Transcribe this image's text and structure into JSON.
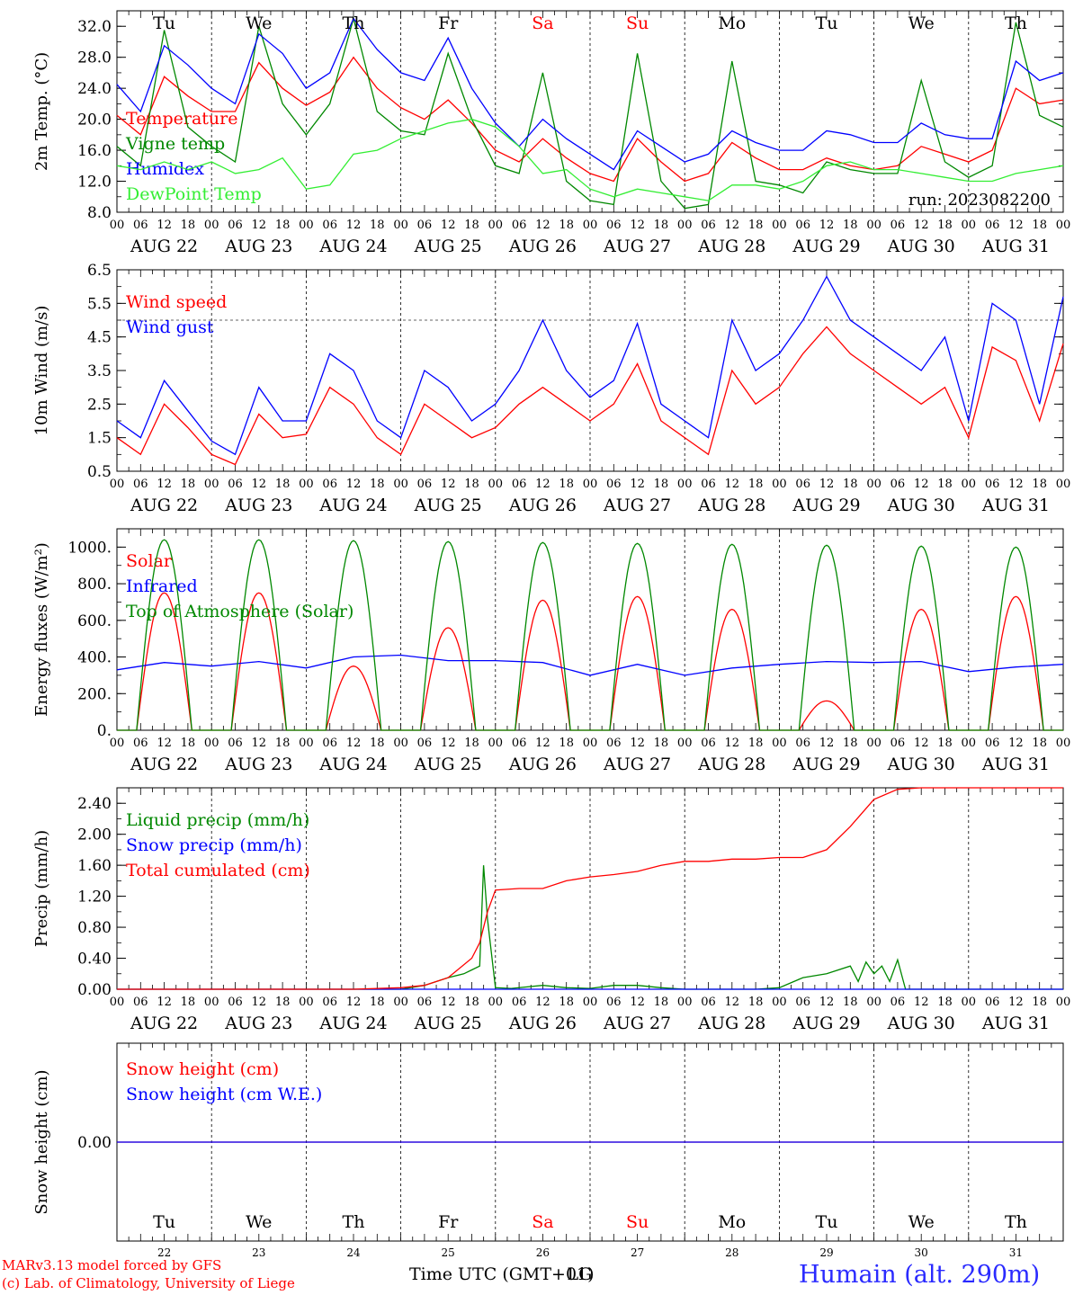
{
  "chart_data": [
    {
      "type": "line",
      "ylabel": "2m Temp. (°C)",
      "ylim": [
        8.0,
        34.0
      ],
      "yticks": [
        "8.0",
        "12.0",
        "16.0",
        "20.0",
        "24.0",
        "28.0",
        "32.0"
      ],
      "run_label": "run: 2023082200",
      "x_unit": "hours since AUG 22 00 UTC",
      "xlim": [
        0,
        240
      ],
      "legend_placement": "left",
      "series": [
        {
          "name": "Temperature",
          "color": "#ff0000",
          "x": [
            0,
            6,
            12,
            18,
            24,
            30,
            36,
            42,
            48,
            54,
            60,
            66,
            72,
            78,
            84,
            90,
            96,
            102,
            108,
            114,
            120,
            126,
            132,
            138,
            144,
            150,
            156,
            162,
            168,
            174,
            180,
            186,
            192,
            198,
            204,
            210,
            216,
            222,
            228,
            234,
            240
          ],
          "y": [
            20.5,
            18.0,
            25.5,
            23.0,
            21.0,
            21.0,
            27.3,
            24.0,
            21.8,
            23.5,
            28.0,
            24.0,
            21.5,
            20.0,
            22.5,
            19.5,
            16.0,
            14.5,
            17.5,
            15.0,
            13.0,
            12.0,
            17.5,
            14.5,
            12.0,
            13.0,
            17.0,
            15.0,
            13.5,
            13.5,
            15.0,
            14.0,
            13.5,
            14.0,
            16.5,
            15.5,
            14.5,
            16.0,
            24.0,
            22.0,
            22.5
          ]
        },
        {
          "name": "Vigne temp",
          "color": "#008800",
          "x": [
            0,
            6,
            12,
            18,
            24,
            30,
            36,
            42,
            48,
            54,
            60,
            66,
            72,
            78,
            84,
            90,
            96,
            102,
            108,
            114,
            120,
            126,
            132,
            138,
            144,
            150,
            156,
            162,
            168,
            174,
            180,
            186,
            192,
            198,
            204,
            210,
            216,
            222,
            228,
            234,
            240
          ],
          "y": [
            16.5,
            14.0,
            31.5,
            19.0,
            16.5,
            14.5,
            32.0,
            22.0,
            18.0,
            22.0,
            33.0,
            21.0,
            18.5,
            18.0,
            28.5,
            20.0,
            14.0,
            13.0,
            26.0,
            12.0,
            9.5,
            9.0,
            28.5,
            12.0,
            8.5,
            9.0,
            27.5,
            12.0,
            11.5,
            10.5,
            14.5,
            13.5,
            13.0,
            13.0,
            25.0,
            14.5,
            12.5,
            14.0,
            32.5,
            20.5,
            19.0
          ]
        },
        {
          "name": "Humidex",
          "color": "#0000ff",
          "x": [
            0,
            6,
            12,
            18,
            24,
            30,
            36,
            42,
            48,
            54,
            60,
            66,
            72,
            78,
            84,
            90,
            96,
            102,
            108,
            114,
            120,
            126,
            132,
            138,
            144,
            150,
            156,
            162,
            168,
            174,
            180,
            186,
            192,
            198,
            204,
            210,
            216,
            222,
            228,
            234,
            240
          ],
          "y": [
            24.5,
            21.0,
            29.5,
            27.0,
            24.0,
            22.0,
            31.0,
            28.5,
            24.0,
            26.0,
            33.0,
            29.0,
            26.0,
            25.0,
            30.5,
            24.0,
            19.5,
            16.5,
            20.0,
            17.5,
            15.5,
            13.5,
            18.5,
            16.5,
            14.5,
            15.5,
            18.5,
            17.0,
            16.0,
            16.0,
            18.5,
            18.0,
            17.0,
            17.0,
            19.5,
            18.0,
            17.5,
            17.5,
            27.5,
            25.0,
            26.0
          ]
        },
        {
          "name": "DewPoint Temp",
          "color": "#33ee33",
          "x": [
            0,
            6,
            12,
            18,
            24,
            30,
            36,
            42,
            48,
            54,
            60,
            66,
            72,
            78,
            84,
            90,
            96,
            102,
            108,
            114,
            120,
            126,
            132,
            138,
            144,
            150,
            156,
            162,
            168,
            174,
            180,
            186,
            192,
            198,
            204,
            210,
            216,
            222,
            228,
            234,
            240
          ],
          "y": [
            14.0,
            13.5,
            14.5,
            13.5,
            14.5,
            13.0,
            13.5,
            15.0,
            11.0,
            11.5,
            15.5,
            16.0,
            17.5,
            18.5,
            19.5,
            20.0,
            19.0,
            16.5,
            13.0,
            13.5,
            11.0,
            10.0,
            11.0,
            10.5,
            10.0,
            9.5,
            11.5,
            11.5,
            11.0,
            12.0,
            14.0,
            14.5,
            13.5,
            13.5,
            13.0,
            12.5,
            12.0,
            12.0,
            13.0,
            13.5,
            14.0
          ]
        }
      ]
    },
    {
      "type": "line",
      "ylabel": "10m Wind (m/s)",
      "ylim": [
        0.5,
        6.5
      ],
      "yticks": [
        "0.5",
        "1.5",
        "2.5",
        "3.5",
        "4.5",
        "5.5",
        "6.5"
      ],
      "reference_line": 5.0,
      "xlim": [
        0,
        240
      ],
      "legend_placement": "left",
      "series": [
        {
          "name": "Wind speed",
          "color": "#ff0000",
          "x": [
            0,
            6,
            12,
            18,
            24,
            30,
            36,
            42,
            48,
            54,
            60,
            66,
            72,
            78,
            84,
            90,
            96,
            102,
            108,
            114,
            120,
            126,
            132,
            138,
            144,
            150,
            156,
            162,
            168,
            174,
            180,
            186,
            192,
            198,
            204,
            210,
            216,
            222,
            228,
            234,
            240
          ],
          "y": [
            1.5,
            1.0,
            2.5,
            1.8,
            1.0,
            0.7,
            2.2,
            1.5,
            1.6,
            3.0,
            2.5,
            1.5,
            1.0,
            2.5,
            2.0,
            1.5,
            1.8,
            2.5,
            3.0,
            2.5,
            2.0,
            2.5,
            3.7,
            2.0,
            1.5,
            1.0,
            3.5,
            2.5,
            3.0,
            4.0,
            4.8,
            4.0,
            3.5,
            3.0,
            2.5,
            3.0,
            1.5,
            4.2,
            3.8,
            2.0,
            4.3
          ]
        },
        {
          "name": "Wind gust",
          "color": "#0000ff",
          "x": [
            0,
            6,
            12,
            18,
            24,
            30,
            36,
            42,
            48,
            54,
            60,
            66,
            72,
            78,
            84,
            90,
            96,
            102,
            108,
            114,
            120,
            126,
            132,
            138,
            144,
            150,
            156,
            162,
            168,
            174,
            180,
            186,
            192,
            198,
            204,
            210,
            216,
            222,
            228,
            234,
            240
          ],
          "y": [
            2.0,
            1.5,
            3.2,
            2.3,
            1.4,
            1.0,
            3.0,
            2.0,
            2.0,
            4.0,
            3.5,
            2.0,
            1.5,
            3.5,
            3.0,
            2.0,
            2.5,
            3.5,
            5.0,
            3.5,
            2.7,
            3.2,
            4.9,
            2.5,
            2.0,
            1.5,
            5.0,
            3.5,
            4.0,
            5.0,
            6.3,
            5.0,
            4.5,
            4.0,
            3.5,
            4.5,
            2.0,
            5.5,
            5.0,
            2.5,
            5.7
          ]
        }
      ]
    },
    {
      "type": "line",
      "ylabel": "Energy fluxes (W/m²)",
      "ylim": [
        0,
        1100
      ],
      "yticks": [
        "0.",
        "200.",
        "400.",
        "600.",
        "800.",
        "1000."
      ],
      "xlim": [
        0,
        240
      ],
      "legend_placement": "left",
      "series": [
        {
          "name": "Solar",
          "color": "#ff0000",
          "daily_peak": [
            750,
            750,
            350,
            560,
            710,
            730,
            660,
            160,
            660,
            730
          ]
        },
        {
          "name": "Infrared",
          "color": "#0000ff",
          "x": [
            0,
            12,
            24,
            36,
            48,
            60,
            72,
            84,
            96,
            108,
            120,
            132,
            144,
            156,
            168,
            180,
            192,
            204,
            216,
            228,
            240
          ],
          "y": [
            330,
            370,
            350,
            375,
            340,
            400,
            410,
            380,
            380,
            370,
            300,
            360,
            300,
            340,
            360,
            375,
            370,
            375,
            320,
            345,
            360
          ]
        },
        {
          "name": "Top of Atmosphere (Solar)",
          "color": "#008800",
          "daily_peak": [
            1040,
            1040,
            1035,
            1030,
            1025,
            1020,
            1015,
            1010,
            1005,
            1000
          ]
        }
      ]
    },
    {
      "type": "line",
      "ylabel": "Precip (mm/h)",
      "ylim": [
        0,
        2.6
      ],
      "yticks": [
        "0.00",
        "0.40",
        "0.80",
        "1.20",
        "1.60",
        "2.00",
        "2.40"
      ],
      "xlim": [
        0,
        240
      ],
      "legend_placement": "left",
      "series": [
        {
          "name": "Liquid precip (mm/h)",
          "color": "#008800",
          "x": [
            0,
            60,
            72,
            78,
            84,
            88,
            90,
            92,
            93,
            94,
            96,
            100,
            108,
            114,
            120,
            126,
            132,
            138,
            144,
            156,
            162,
            168,
            174,
            180,
            186,
            188,
            190,
            192,
            194,
            196,
            198,
            200,
            240
          ],
          "y": [
            0,
            0,
            0,
            0.05,
            0.15,
            0.2,
            0.25,
            0.3,
            1.6,
            0.9,
            0.02,
            0.01,
            0.05,
            0.02,
            0.01,
            0.05,
            0.05,
            0.02,
            0,
            0,
            0,
            0.02,
            0.15,
            0.2,
            0.3,
            0.1,
            0.35,
            0.2,
            0.3,
            0.1,
            0.38,
            0,
            0
          ]
        },
        {
          "name": "Snow precip (mm/h)",
          "color": "#0000ff",
          "x": [
            0,
            240
          ],
          "y": [
            0,
            0
          ]
        },
        {
          "name": "Total cumulated (cm)",
          "color": "#ff0000",
          "x": [
            0,
            60,
            72,
            78,
            84,
            90,
            92,
            94,
            96,
            102,
            108,
            114,
            120,
            126,
            132,
            138,
            144,
            150,
            156,
            162,
            168,
            174,
            180,
            186,
            192,
            198,
            204,
            210,
            216,
            222,
            228,
            234,
            240
          ],
          "y": [
            0,
            0,
            0.02,
            0.05,
            0.15,
            0.4,
            0.6,
            1.0,
            1.28,
            1.3,
            1.3,
            1.4,
            1.45,
            1.48,
            1.52,
            1.6,
            1.65,
            1.65,
            1.68,
            1.68,
            1.7,
            1.7,
            1.8,
            2.1,
            2.45,
            2.58,
            2.6,
            2.6,
            2.6,
            2.6,
            2.6,
            2.6,
            2.6
          ]
        }
      ]
    },
    {
      "type": "line",
      "ylabel": "Snow height (cm)",
      "ylim": [
        -1,
        1
      ],
      "yticks": [
        "0.00"
      ],
      "xlim": [
        0,
        240
      ],
      "legend_placement": "left",
      "series": [
        {
          "name": "Snow height (cm)",
          "color": "#ff0000",
          "x": [
            0,
            240
          ],
          "y": [
            0,
            0
          ]
        },
        {
          "name": "Snow height (cm W.E.)",
          "color": "#0000ff",
          "x": [
            0,
            240
          ],
          "y": [
            0,
            0
          ]
        }
      ]
    }
  ],
  "hour_ticks": [
    "00",
    "06",
    "12",
    "18"
  ],
  "end_tick": "00",
  "dates": [
    "AUG 22",
    "AUG 23",
    "AUG 24",
    "AUG 25",
    "AUG 26",
    "AUG 27",
    "AUG 28",
    "AUG 29",
    "AUG 30",
    "AUG 31"
  ],
  "weekdays": [
    "Tu",
    "We",
    "Th",
    "Fr",
    "Sa",
    "Su",
    "Mo",
    "Tu",
    "We",
    "Th"
  ],
  "weekend_flags": [
    false,
    false,
    false,
    false,
    true,
    true,
    false,
    false,
    false,
    false
  ],
  "day_numbers": [
    "22",
    "23",
    "24",
    "25",
    "26",
    "27",
    "28",
    "29",
    "30",
    "31"
  ],
  "xlabel": "Time UTC (GMT+01)",
  "xlabel_overlap": "LG",
  "credit_line1": "MARv3.13 model forced by GFS",
  "credit_line2": "(c) Lab. of Climatology, University of Liege",
  "station": "Humain (alt. 290m)",
  "colors": {
    "weekday": "#000000",
    "weekend": "#ff0000"
  }
}
